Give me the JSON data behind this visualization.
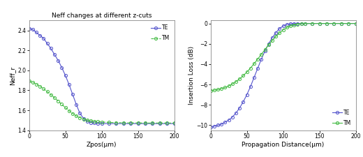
{
  "title_left": "Neff changes at different z-cuts",
  "xlabel_left": "Zpos(μm)",
  "ylabel_left": "Neff_r",
  "xlim_left": [
    0,
    200
  ],
  "ylim_left": [
    1.4,
    2.5
  ],
  "yticks_left": [
    1.4,
    1.6,
    1.8,
    2.0,
    2.2,
    2.4
  ],
  "xticks_left": [
    0,
    50,
    100,
    150,
    200
  ],
  "xlabel_right": "Propagation Distance(μm)",
  "ylabel_right": "Insertion Loss (dB)",
  "xlim_right": [
    0,
    200
  ],
  "ylim_right": [
    -10.5,
    0.3
  ],
  "yticks_right": [
    0,
    -2,
    -4,
    -6,
    -8,
    -10
  ],
  "xticks_right": [
    0,
    50,
    100,
    150,
    200
  ],
  "te_color": "#5555cc",
  "tm_color": "#44bb44",
  "bg_color": "#ffffff",
  "axes_border_color": "#888888",
  "te_neff_x": [
    0,
    5,
    10,
    15,
    20,
    25,
    30,
    35,
    40,
    45,
    50,
    55,
    60,
    65,
    70,
    75,
    80,
    85,
    90,
    95,
    100,
    110,
    120,
    130,
    140,
    150,
    160,
    170,
    180,
    190,
    200
  ],
  "te_neff_y": [
    2.42,
    2.41,
    2.38,
    2.35,
    2.32,
    2.27,
    2.22,
    2.16,
    2.1,
    2.03,
    1.95,
    1.86,
    1.76,
    1.66,
    1.57,
    1.52,
    1.49,
    1.478,
    1.472,
    1.469,
    1.468,
    1.467,
    1.467,
    1.467,
    1.467,
    1.467,
    1.467,
    1.467,
    1.467,
    1.467,
    1.467
  ],
  "tm_neff_x": [
    0,
    5,
    10,
    15,
    20,
    25,
    30,
    35,
    40,
    45,
    50,
    55,
    60,
    65,
    70,
    75,
    80,
    85,
    90,
    95,
    100,
    110,
    120,
    130,
    140,
    150,
    160,
    170,
    180,
    190,
    200
  ],
  "tm_neff_y": [
    1.895,
    1.88,
    1.862,
    1.84,
    1.815,
    1.787,
    1.757,
    1.726,
    1.694,
    1.661,
    1.628,
    1.597,
    1.568,
    1.545,
    1.527,
    1.513,
    1.503,
    1.496,
    1.49,
    1.486,
    1.483,
    1.479,
    1.477,
    1.475,
    1.474,
    1.474,
    1.473,
    1.473,
    1.473,
    1.473,
    1.473
  ],
  "te_loss_x": [
    0,
    5,
    10,
    15,
    20,
    25,
    30,
    35,
    40,
    45,
    50,
    55,
    60,
    65,
    70,
    75,
    80,
    85,
    90,
    95,
    100,
    105,
    110,
    115,
    120,
    125,
    130,
    140,
    150,
    160,
    170,
    180,
    190,
    200
  ],
  "te_loss_y": [
    -10.2,
    -10.1,
    -10.0,
    -9.9,
    -9.7,
    -9.5,
    -9.2,
    -8.8,
    -8.3,
    -7.7,
    -7.0,
    -6.2,
    -5.3,
    -4.4,
    -3.5,
    -2.7,
    -2.0,
    -1.4,
    -0.9,
    -0.5,
    -0.25,
    -0.1,
    -0.04,
    -0.015,
    -0.005,
    -0.002,
    -0.001,
    0.0,
    0.0,
    0.0,
    0.0,
    0.0,
    0.0,
    0.0
  ],
  "tm_loss_x": [
    0,
    5,
    10,
    15,
    20,
    25,
    30,
    35,
    40,
    45,
    50,
    55,
    60,
    65,
    70,
    75,
    80,
    85,
    90,
    95,
    100,
    105,
    110,
    115,
    120,
    125,
    130,
    140,
    150,
    160,
    170,
    180,
    190,
    200
  ],
  "tm_loss_y": [
    -6.6,
    -6.55,
    -6.5,
    -6.4,
    -6.3,
    -6.15,
    -5.95,
    -5.72,
    -5.45,
    -5.13,
    -4.78,
    -4.38,
    -3.95,
    -3.5,
    -3.03,
    -2.56,
    -2.1,
    -1.67,
    -1.27,
    -0.92,
    -0.63,
    -0.4,
    -0.24,
    -0.13,
    -0.065,
    -0.03,
    -0.012,
    -0.003,
    -0.001,
    0.0,
    0.0,
    0.0,
    0.0,
    0.0
  ]
}
